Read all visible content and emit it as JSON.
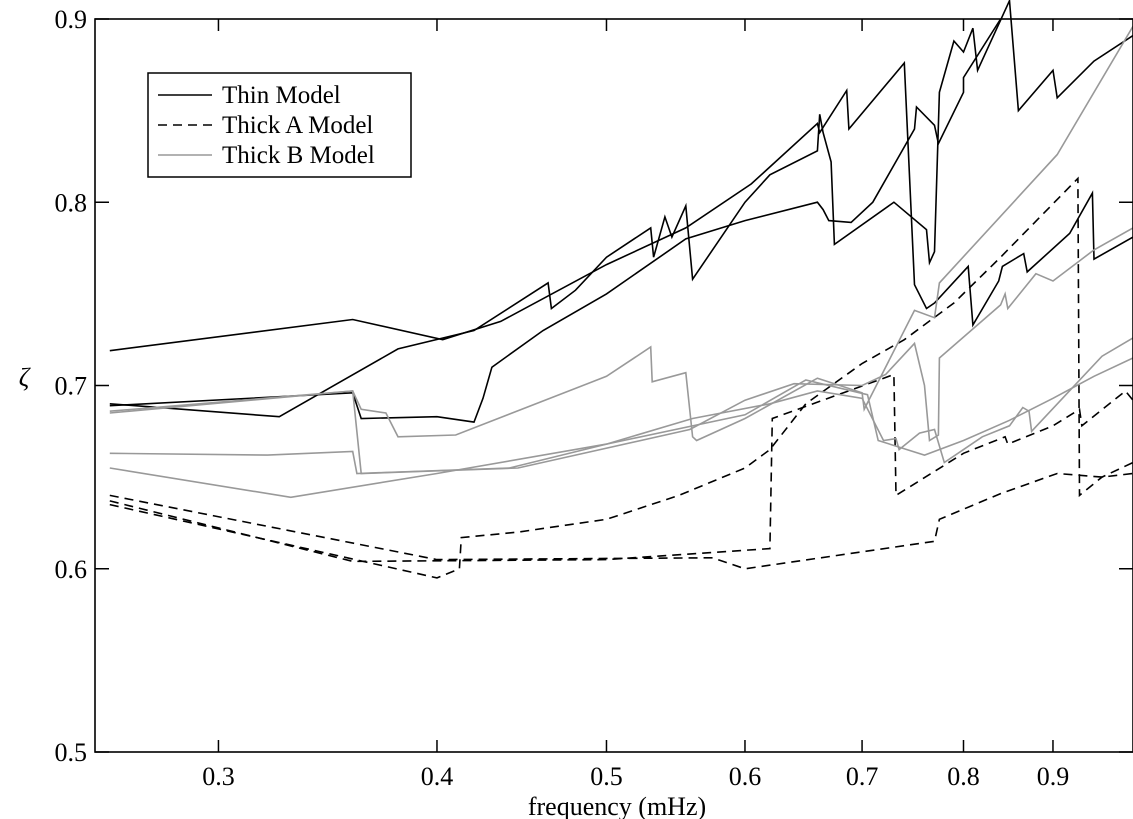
{
  "chart_data": {
    "type": "line",
    "title": "",
    "xlabel": "frequency (mHz)",
    "ylabel": "ζ",
    "xscale": "log",
    "xlim": [
      0.255,
      1.0
    ],
    "ylim": [
      0.5,
      0.9
    ],
    "xticks": [
      0.3,
      0.4,
      0.5,
      0.6,
      0.7,
      0.8,
      0.9
    ],
    "xtick_labels": [
      "0.3",
      "0.4",
      "0.5",
      "0.6",
      "0.7",
      "0.8",
      "0.9"
    ],
    "yticks": [
      0.5,
      0.6,
      0.7,
      0.8,
      0.9
    ],
    "ytick_labels": [
      "0.5",
      "0.6",
      "0.7",
      "0.8",
      "0.9"
    ],
    "grid": false,
    "legend_position": "top-left",
    "legend": [
      {
        "label": "Thin Model",
        "style": "solid",
        "color": "#000000"
      },
      {
        "label": "Thick A Model",
        "style": "dashed",
        "color": "#000000"
      },
      {
        "label": "Thick B Model",
        "style": "solid",
        "color": "#999999"
      }
    ],
    "series": [
      {
        "group": "Thin Model",
        "points": [
          [
            0.26,
            0.719
          ],
          [
            0.358,
            0.736
          ],
          [
            0.403,
            0.725
          ],
          [
            0.435,
            0.735
          ],
          [
            0.5,
            0.766
          ],
          [
            0.555,
            0.786
          ],
          [
            0.605,
            0.81
          ],
          [
            0.66,
            0.843
          ],
          [
            0.662,
            0.838
          ],
          [
            0.686,
            0.861
          ],
          [
            0.688,
            0.84
          ],
          [
            0.74,
            0.876
          ],
          [
            0.75,
            0.755
          ],
          [
            0.762,
            0.742
          ],
          [
            0.77,
            0.745
          ],
          [
            0.805,
            0.765
          ],
          [
            0.81,
            0.733
          ],
          [
            0.838,
            0.757
          ],
          [
            0.842,
            0.765
          ],
          [
            0.866,
            0.772
          ],
          [
            0.87,
            0.762
          ],
          [
            0.92,
            0.783
          ],
          [
            0.948,
            0.805
          ],
          [
            0.95,
            0.769
          ],
          [
            1.0,
            0.781
          ]
        ]
      },
      {
        "group": "Thin Model",
        "points": [
          [
            0.26,
            0.69
          ],
          [
            0.325,
            0.683
          ],
          [
            0.38,
            0.72
          ],
          [
            0.42,
            0.73
          ],
          [
            0.463,
            0.756
          ],
          [
            0.465,
            0.742
          ],
          [
            0.48,
            0.752
          ],
          [
            0.5,
            0.77
          ],
          [
            0.53,
            0.786
          ],
          [
            0.532,
            0.77
          ],
          [
            0.54,
            0.792
          ],
          [
            0.545,
            0.781
          ],
          [
            0.555,
            0.798
          ],
          [
            0.56,
            0.758
          ],
          [
            0.6,
            0.8
          ],
          [
            0.62,
            0.815
          ],
          [
            0.66,
            0.828
          ],
          [
            0.662,
            0.848
          ],
          [
            0.665,
            0.838
          ],
          [
            0.672,
            0.822
          ],
          [
            0.675,
            0.777
          ],
          [
            0.73,
            0.8
          ],
          [
            0.762,
            0.785
          ],
          [
            0.765,
            0.767
          ],
          [
            0.77,
            0.773
          ],
          [
            0.775,
            0.86
          ],
          [
            0.79,
            0.888
          ],
          [
            0.8,
            0.882
          ],
          [
            0.81,
            0.895
          ],
          [
            0.815,
            0.872
          ],
          [
            0.85,
            0.91
          ],
          [
            0.86,
            0.85
          ],
          [
            0.9,
            0.872
          ],
          [
            0.905,
            0.857
          ],
          [
            0.95,
            0.877
          ],
          [
            1.0,
            0.891
          ]
        ]
      },
      {
        "group": "Thin Model",
        "points": [
          [
            0.26,
            0.689
          ],
          [
            0.358,
            0.696
          ],
          [
            0.362,
            0.682
          ],
          [
            0.4,
            0.683
          ],
          [
            0.42,
            0.68
          ],
          [
            0.425,
            0.693
          ],
          [
            0.43,
            0.71
          ],
          [
            0.46,
            0.73
          ],
          [
            0.5,
            0.75
          ],
          [
            0.555,
            0.78
          ],
          [
            0.6,
            0.79
          ],
          [
            0.66,
            0.8
          ],
          [
            0.665,
            0.796
          ],
          [
            0.67,
            0.79
          ],
          [
            0.69,
            0.789
          ],
          [
            0.71,
            0.8
          ],
          [
            0.75,
            0.84
          ],
          [
            0.752,
            0.852
          ],
          [
            0.77,
            0.842
          ],
          [
            0.774,
            0.832
          ],
          [
            0.8,
            0.86
          ],
          [
            0.8,
            0.868
          ],
          [
            0.84,
            0.9
          ]
        ]
      },
      {
        "group": "Thick A Model",
        "points": [
          [
            0.26,
            0.635
          ],
          [
            0.4,
            0.595
          ],
          [
            0.412,
            0.6
          ],
          [
            0.413,
            0.617
          ],
          [
            0.445,
            0.62
          ],
          [
            0.5,
            0.627
          ],
          [
            0.55,
            0.64
          ],
          [
            0.6,
            0.655
          ],
          [
            0.62,
            0.665
          ],
          [
            0.65,
            0.69
          ],
          [
            0.7,
            0.712
          ],
          [
            0.74,
            0.725
          ],
          [
            0.79,
            0.745
          ],
          [
            0.84,
            0.77
          ],
          [
            0.93,
            0.813
          ],
          [
            0.932,
            0.64
          ],
          [
            0.96,
            0.65
          ],
          [
            1.0,
            0.658
          ]
        ]
      },
      {
        "group": "Thick A Model",
        "points": [
          [
            0.26,
            0.637
          ],
          [
            0.358,
            0.604
          ],
          [
            0.5,
            0.605
          ],
          [
            0.62,
            0.611
          ],
          [
            0.622,
            0.682
          ],
          [
            0.73,
            0.706
          ],
          [
            0.732,
            0.64
          ],
          [
            0.8,
            0.663
          ],
          [
            0.845,
            0.672
          ],
          [
            0.848,
            0.668
          ],
          [
            0.9,
            0.678
          ],
          [
            0.932,
            0.687
          ],
          [
            0.935,
            0.678
          ],
          [
            0.99,
            0.697
          ],
          [
            1.0,
            0.692
          ]
        ]
      },
      {
        "group": "Thick A Model",
        "points": [
          [
            0.26,
            0.64
          ],
          [
            0.4,
            0.605
          ],
          [
            0.575,
            0.606
          ],
          [
            0.6,
            0.6
          ],
          [
            0.77,
            0.615
          ],
          [
            0.775,
            0.627
          ],
          [
            0.84,
            0.641
          ],
          [
            0.905,
            0.652
          ],
          [
            0.96,
            0.65
          ],
          [
            1.0,
            0.652
          ]
        ]
      },
      {
        "group": "Thick B Model",
        "points": [
          [
            0.26,
            0.685
          ],
          [
            0.358,
            0.697
          ],
          [
            0.362,
            0.687
          ],
          [
            0.374,
            0.685
          ],
          [
            0.38,
            0.672
          ],
          [
            0.41,
            0.673
          ],
          [
            0.5,
            0.705
          ],
          [
            0.53,
            0.721
          ],
          [
            0.531,
            0.702
          ],
          [
            0.555,
            0.707
          ],
          [
            0.56,
            0.672
          ],
          [
            0.563,
            0.67
          ],
          [
            0.6,
            0.682
          ],
          [
            0.66,
            0.704
          ],
          [
            0.7,
            0.696
          ],
          [
            0.702,
            0.687
          ],
          [
            0.75,
            0.741
          ],
          [
            0.77,
            0.737
          ],
          [
            0.775,
            0.756
          ],
          [
            0.905,
            0.826
          ],
          [
            1.0,
            0.896
          ]
        ]
      },
      {
        "group": "Thick B Model",
        "points": [
          [
            0.26,
            0.686
          ],
          [
            0.358,
            0.697
          ],
          [
            0.362,
            0.652
          ],
          [
            0.445,
            0.655
          ],
          [
            0.558,
            0.676
          ],
          [
            0.6,
            0.692
          ],
          [
            0.64,
            0.701
          ],
          [
            0.7,
            0.7
          ],
          [
            0.722,
            0.706
          ],
          [
            0.75,
            0.723
          ],
          [
            0.76,
            0.7
          ],
          [
            0.765,
            0.67
          ],
          [
            0.774,
            0.673
          ],
          [
            0.775,
            0.715
          ],
          [
            0.84,
            0.744
          ],
          [
            0.845,
            0.75
          ],
          [
            0.848,
            0.742
          ],
          [
            0.88,
            0.761
          ],
          [
            0.9,
            0.757
          ],
          [
            0.95,
            0.774
          ],
          [
            1.0,
            0.786
          ]
        ]
      },
      {
        "group": "Thick B Model",
        "points": [
          [
            0.26,
            0.663
          ],
          [
            0.32,
            0.662
          ],
          [
            0.358,
            0.664
          ],
          [
            0.36,
            0.652
          ],
          [
            0.44,
            0.655
          ],
          [
            0.5,
            0.668
          ],
          [
            0.56,
            0.682
          ],
          [
            0.62,
            0.69
          ],
          [
            0.66,
            0.697
          ],
          [
            0.7,
            0.693
          ],
          [
            0.72,
            0.67
          ],
          [
            0.732,
            0.671
          ],
          [
            0.735,
            0.665
          ],
          [
            0.755,
            0.674
          ],
          [
            0.77,
            0.676
          ],
          [
            0.78,
            0.658
          ],
          [
            0.8,
            0.665
          ],
          [
            0.82,
            0.672
          ],
          [
            0.85,
            0.678
          ],
          [
            0.865,
            0.688
          ],
          [
            0.872,
            0.686
          ],
          [
            0.875,
            0.675
          ],
          [
            0.96,
            0.716
          ],
          [
            1.0,
            0.726
          ]
        ]
      },
      {
        "group": "Thick B Model",
        "points": [
          [
            0.26,
            0.655
          ],
          [
            0.33,
            0.639
          ],
          [
            0.4,
            0.652
          ],
          [
            0.5,
            0.668
          ],
          [
            0.6,
            0.684
          ],
          [
            0.65,
            0.703
          ],
          [
            0.705,
            0.695
          ],
          [
            0.715,
            0.67
          ],
          [
            0.76,
            0.662
          ],
          [
            0.8,
            0.67
          ],
          [
            0.85,
            0.681
          ],
          [
            0.9,
            0.693
          ],
          [
            0.95,
            0.705
          ],
          [
            1.0,
            0.715
          ]
        ]
      }
    ]
  }
}
